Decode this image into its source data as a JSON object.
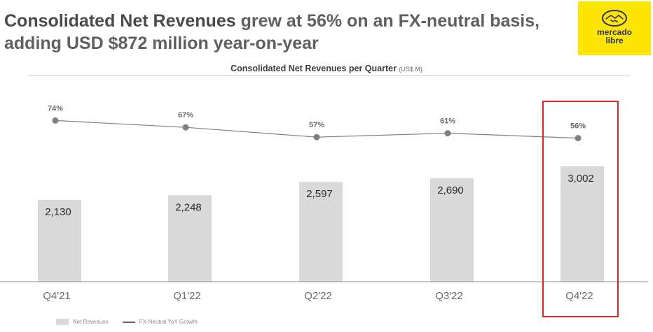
{
  "headline": {
    "bold": "Consolidated Net Revenues",
    "rest": " grew at 56% on an FX-neutral basis, adding USD $872 million year-on-year"
  },
  "logo": {
    "line1": "mercado",
    "line2": "libre",
    "icon": "handshake-icon",
    "color": "#ffe600",
    "text_color": "#2d3277"
  },
  "chart_data": {
    "type": "bar",
    "title": "Consolidated Net Revenues per Quarter",
    "title_unit": "(US$ M)",
    "categories": [
      "Q4'21",
      "Q1'22",
      "Q2'22",
      "Q3'22",
      "Q4'22"
    ],
    "series": [
      {
        "name": "Net Revenues",
        "type": "bar",
        "values": [
          2130,
          2248,
          2597,
          2690,
          3002
        ],
        "labels": [
          "2,130",
          "2,248",
          "2,597",
          "2,690",
          "3,002"
        ],
        "color": "#d9d9d9"
      },
      {
        "name": "FX-Neutral YoY Growth",
        "type": "line",
        "values": [
          74,
          67,
          57,
          61,
          56
        ],
        "labels": [
          "74%",
          "67%",
          "57%",
          "61%",
          "56%"
        ],
        "color": "#808080"
      }
    ],
    "highlight": {
      "category": "Q4'22",
      "color": "#d62828"
    },
    "legend_placement": "bottom-left",
    "grid": false
  }
}
